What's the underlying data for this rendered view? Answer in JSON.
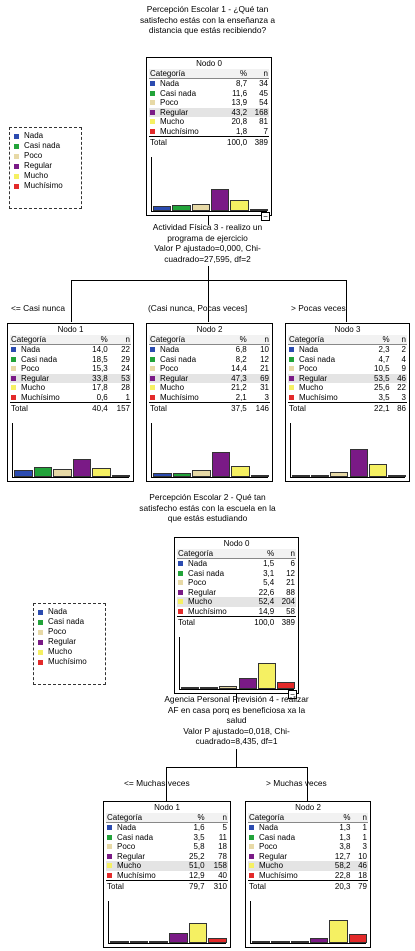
{
  "colors": {
    "Nada": "#2b4bb0",
    "Casi nada": "#22a33a",
    "Poco": "#e7d9a6",
    "Regular": "#7a1a86",
    "Mucho": "#f5f062",
    "Muchísimo": "#e32a2a"
  },
  "legend": [
    "Nada",
    "Casi nada",
    "Poco",
    "Regular",
    "Mucho",
    "Muchísimo"
  ],
  "tree1": {
    "title": [
      "Percepción Escolar 1 - ¿Qué tan",
      "satisfecho estás con la enseñanza a",
      "distancia que estás recibiendo?"
    ],
    "split_label": [
      "Actividad Física 3 - realizo un",
      "programa de ejercicio",
      "Valor P ajustado=0,000, Chi-",
      "cuadrado=27,595, df=2"
    ],
    "branches": [
      "<= Casi nunca",
      "(Casi nunca, Pocas veces]",
      "> Pocas veces"
    ],
    "nodes": [
      {
        "name": "Nodo 0",
        "highlight": "Regular",
        "rows": [
          [
            "Nada",
            "8,7",
            "34"
          ],
          [
            "Casi nada",
            "11,6",
            "45"
          ],
          [
            "Poco",
            "13,9",
            "54"
          ],
          [
            "Regular",
            "43,2",
            "168"
          ],
          [
            "Mucho",
            "20,8",
            "81"
          ],
          [
            "Muchísimo",
            "1,8",
            "7"
          ]
        ],
        "total": [
          "Total",
          "100,0",
          "389"
        ],
        "bars": [
          8.7,
          11.6,
          13.9,
          43.2,
          20.8,
          1.8
        ]
      },
      {
        "name": "Nodo 1",
        "highlight": "Regular",
        "rows": [
          [
            "Nada",
            "14,0",
            "22"
          ],
          [
            "Casi nada",
            "18,5",
            "29"
          ],
          [
            "Poco",
            "15,3",
            "24"
          ],
          [
            "Regular",
            "33,8",
            "53"
          ],
          [
            "Mucho",
            "17,8",
            "28"
          ],
          [
            "Muchísimo",
            "0,6",
            "1"
          ]
        ],
        "total": [
          "Total",
          "40,4",
          "157"
        ],
        "bars": [
          14.0,
          18.5,
          15.3,
          33.8,
          17.8,
          0.6
        ]
      },
      {
        "name": "Nodo 2",
        "highlight": "Regular",
        "rows": [
          [
            "Nada",
            "6,8",
            "10"
          ],
          [
            "Casi nada",
            "8,2",
            "12"
          ],
          [
            "Poco",
            "14,4",
            "21"
          ],
          [
            "Regular",
            "47,3",
            "69"
          ],
          [
            "Mucho",
            "21,2",
            "31"
          ],
          [
            "Muchísimo",
            "2,1",
            "3"
          ]
        ],
        "total": [
          "Total",
          "37,5",
          "146"
        ],
        "bars": [
          6.8,
          8.2,
          14.4,
          47.3,
          21.2,
          2.1
        ]
      },
      {
        "name": "Nodo 3",
        "highlight": "Regular",
        "rows": [
          [
            "Nada",
            "2,3",
            "2"
          ],
          [
            "Casi nada",
            "4,7",
            "4"
          ],
          [
            "Poco",
            "10,5",
            "9"
          ],
          [
            "Regular",
            "53,5",
            "46"
          ],
          [
            "Mucho",
            "25,6",
            "22"
          ],
          [
            "Muchísimo",
            "3,5",
            "3"
          ]
        ],
        "total": [
          "Total",
          "22,1",
          "86"
        ],
        "bars": [
          2.3,
          4.7,
          10.5,
          53.5,
          25.6,
          3.5
        ]
      }
    ]
  },
  "tree2": {
    "title": [
      "Percepción Escolar 2 - Qué tan",
      "satisfecho estás con la escuela en la",
      "que estás estudiando"
    ],
    "split_label": [
      "Agencia Personal Previsión 4 - realizar",
      "AF en casa porq es beneficiosa xa la",
      "salud",
      "Valor P ajustado=0,018, Chi-",
      "cuadrado=8,435, df=1"
    ],
    "branches": [
      "<= Muchas veces",
      "> Muchas veces"
    ],
    "nodes": [
      {
        "name": "Nodo 0",
        "highlight": "Mucho",
        "rows": [
          [
            "Nada",
            "1,5",
            "6"
          ],
          [
            "Casi nada",
            "3,1",
            "12"
          ],
          [
            "Poco",
            "5,4",
            "21"
          ],
          [
            "Regular",
            "22,6",
            "88"
          ],
          [
            "Mucho",
            "52,4",
            "204"
          ],
          [
            "Muchísimo",
            "14,9",
            "58"
          ]
        ],
        "total": [
          "Total",
          "100,0",
          "389"
        ],
        "bars": [
          1.5,
          3.1,
          5.4,
          22.6,
          52.4,
          14.9
        ]
      },
      {
        "name": "Nodo 1",
        "highlight": "Mucho",
        "rows": [
          [
            "Nada",
            "1,6",
            "5"
          ],
          [
            "Casi nada",
            "3,5",
            "11"
          ],
          [
            "Poco",
            "5,8",
            "18"
          ],
          [
            "Regular",
            "25,2",
            "78"
          ],
          [
            "Mucho",
            "51,0",
            "158"
          ],
          [
            "Muchísimo",
            "12,9",
            "40"
          ]
        ],
        "total": [
          "Total",
          "79,7",
          "310"
        ],
        "bars": [
          1.6,
          3.5,
          5.8,
          25.2,
          51.0,
          12.9
        ]
      },
      {
        "name": "Nodo 2",
        "highlight": "Mucho",
        "rows": [
          [
            "Nada",
            "1,3",
            "1"
          ],
          [
            "Casi nada",
            "1,3",
            "1"
          ],
          [
            "Poco",
            "3,8",
            "3"
          ],
          [
            "Regular",
            "12,7",
            "10"
          ],
          [
            "Mucho",
            "58,2",
            "46"
          ],
          [
            "Muchísimo",
            "22,8",
            "18"
          ]
        ],
        "total": [
          "Total",
          "20,3",
          "79"
        ],
        "bars": [
          1.3,
          1.3,
          3.8,
          12.7,
          58.2,
          22.8
        ]
      }
    ]
  },
  "table_header": [
    "Categoría",
    "%",
    "n"
  ]
}
